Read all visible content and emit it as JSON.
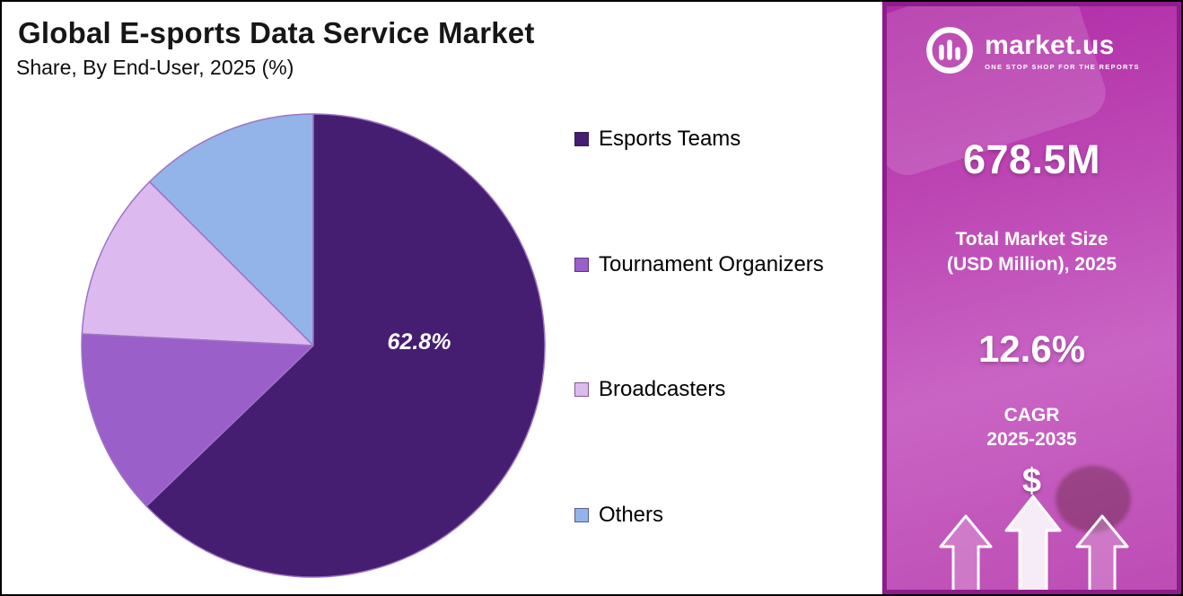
{
  "header": {
    "title": "Global E-sports Data Service Market",
    "subtitle": "Share, By End-User, 2025 (%)"
  },
  "chart_data": {
    "type": "pie",
    "title": "Global E-sports Data Service Market Share, By End-User, 2025 (%)",
    "labels": [
      "Esports Teams",
      "Tournament Organizers",
      "Broadcasters",
      "Others"
    ],
    "values": [
      62.8,
      13.0,
      11.7,
      12.5
    ],
    "colors": [
      "#451d71",
      "#9a5fc9",
      "#dcb9ef",
      "#93b4e8"
    ],
    "start_angle_deg": 0,
    "direction": "clockwise",
    "legend_position": "right",
    "data_label": {
      "slice": "Esports Teams",
      "text": "62.8%"
    }
  },
  "legend": {
    "items": [
      {
        "label": "Esports Teams",
        "color": "#451d71"
      },
      {
        "label": "Tournament Organizers",
        "color": "#9a5fc9"
      },
      {
        "label": "Broadcasters",
        "color": "#dcb9ef"
      },
      {
        "label": "Others",
        "color": "#93b4e8"
      }
    ]
  },
  "sidebar": {
    "brand": {
      "name": "market.us",
      "tagline": "ONE STOP SHOP FOR THE REPORTS"
    },
    "market_size_value": "678.5M",
    "market_size_label_line1": "Total Market Size",
    "market_size_label_line2": "(USD Million), 2025",
    "cagr_value": "12.6%",
    "cagr_label_line1": "CAGR",
    "cagr_label_line2": "2025-2035",
    "dollar_symbol": "$",
    "colors": {
      "gradient_top": "#b02ba6",
      "gradient_bottom": "#bd4cb4",
      "border": "#8e1c8c"
    }
  }
}
